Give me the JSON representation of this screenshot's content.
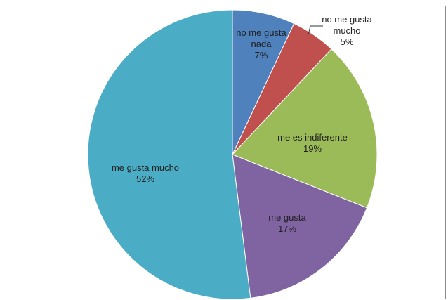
{
  "chart_data": {
    "type": "pie",
    "title": "",
    "start_angle_deg": 0,
    "direction": "clockwise",
    "slices": [
      {
        "label_lines": [
          "no me gusta",
          "nada"
        ],
        "value_label": "7%",
        "value": 7,
        "color": "#4f81bd"
      },
      {
        "label_lines": [
          "no me gusta",
          "mucho"
        ],
        "value_label": "5%",
        "value": 5,
        "color": "#c0504d"
      },
      {
        "label_lines": [
          "me es indiferente"
        ],
        "value_label": "19%",
        "value": 19,
        "color": "#9bbb59"
      },
      {
        "label_lines": [
          "me gusta"
        ],
        "value_label": "17%",
        "value": 17,
        "color": "#8064a2"
      },
      {
        "label_lines": [
          "me gusta mucho"
        ],
        "value_label": "52%",
        "value": 52,
        "color": "#4bacc6"
      }
    ]
  }
}
